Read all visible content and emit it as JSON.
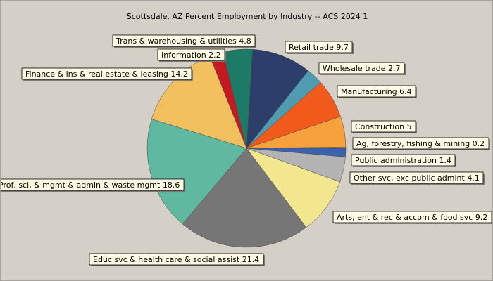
{
  "chart_data": {
    "type": "pie",
    "title": "Scottsdale, AZ Percent Employment by Industry -- ACS 2024 1",
    "background": "#d4d0c8",
    "label_background": "#fffde6",
    "slices": [
      {
        "label": "Ag, forestry, fishing & mining 0.2",
        "value": 0.2,
        "color": "#f7941d"
      },
      {
        "label": "Construction 5",
        "value": 5.0,
        "color": "#f7a13c"
      },
      {
        "label": "Manufacturing 6.4",
        "value": 6.4,
        "color": "#f15a1a"
      },
      {
        "label": "Wholesale trade 2.7",
        "value": 2.7,
        "color": "#4f9bb0"
      },
      {
        "label": "Retail trade 9.7",
        "value": 9.7,
        "color": "#2c3f6b"
      },
      {
        "label": "Trans & warehousing & utilities 4.8",
        "value": 4.8,
        "color": "#1c7a66"
      },
      {
        "label": "Information 2.2",
        "value": 2.2,
        "color": "#c41920"
      },
      {
        "label": "Finance & ins & real estate & leasing 14.2",
        "value": 14.2,
        "color": "#f2bf5e"
      },
      {
        "label": "Prof, sci, & mgmt & admin & waste mgmt 18.6",
        "value": 18.6,
        "color": "#5fb8a0"
      },
      {
        "label": "Educ svc & health care & social assist 21.4",
        "value": 21.4,
        "color": "#767676"
      },
      {
        "label": "Arts, ent & rec & accom & food svc 9.2",
        "value": 9.2,
        "color": "#f2e68e"
      },
      {
        "label": "Other svc, exc public admint 4.1",
        "value": 4.1,
        "color": "#b3b3b3"
      },
      {
        "label": "Public administration 1.4",
        "value": 1.4,
        "color": "#3b62ad"
      }
    ]
  }
}
